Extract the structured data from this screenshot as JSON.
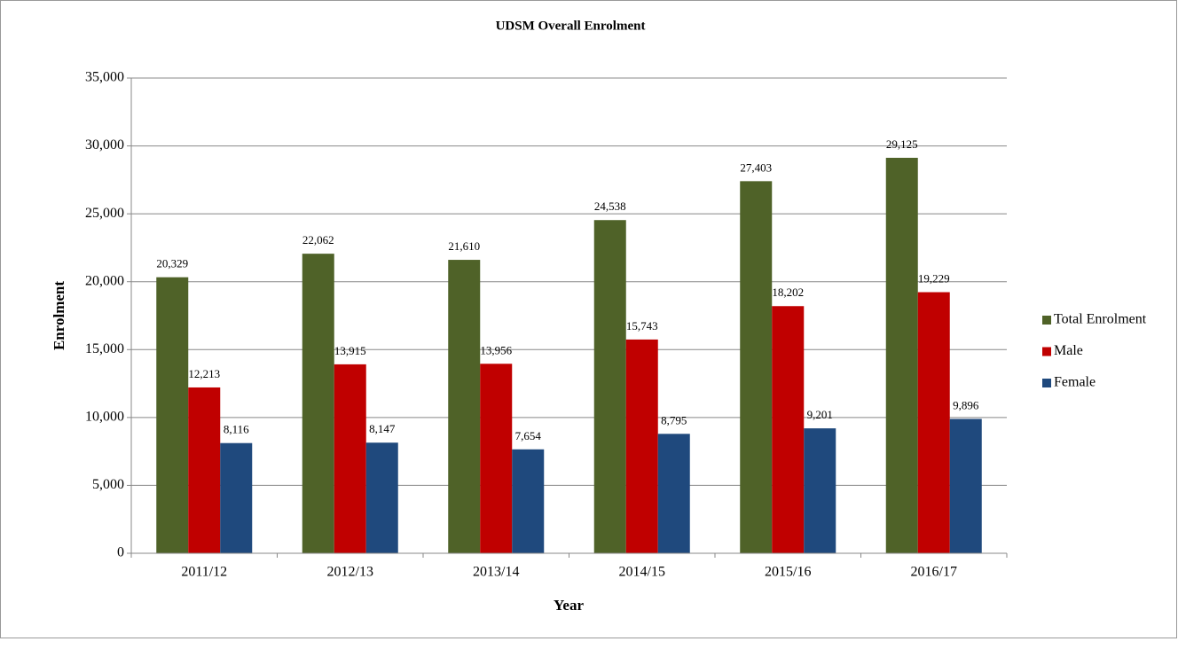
{
  "chart_data": {
    "type": "bar",
    "title": "UDSM Overall Enrolment",
    "x_label": "Year",
    "y_label": "Enrolment",
    "categories": [
      "2011/12",
      "2012/13",
      "2013/14",
      "2014/15",
      "2015/16",
      "2016/17"
    ],
    "series": [
      {
        "name": "Total Enrolment",
        "color": "#4f6228",
        "values": [
          20329,
          22062,
          21610,
          24538,
          27403,
          29125
        ],
        "value_labels": [
          "20,329",
          "22,062",
          "21,610",
          "24,538",
          "27,403",
          "29,125"
        ]
      },
      {
        "name": "Male",
        "color": "#c00000",
        "values": [
          12213,
          13915,
          13956,
          15743,
          18202,
          19229
        ],
        "value_labels": [
          "12,213",
          "13,915",
          "13,956",
          "15,743",
          "18,202",
          "19,229"
        ]
      },
      {
        "name": "Female",
        "color": "#1f497d",
        "values": [
          8116,
          8147,
          7654,
          8795,
          9201,
          9896
        ],
        "value_labels": [
          "8,116",
          "8,147",
          "7,654",
          "8,795",
          "9,201",
          "9,896"
        ]
      }
    ],
    "ylim": [
      0,
      35000
    ],
    "yticks": [
      0,
      {
        "value": 5000,
        "label": "5,000"
      },
      {
        "value": 10000,
        "label": "10,000"
      },
      {
        "value": 15000,
        "label": "15,000"
      },
      {
        "value": 20000,
        "label": "20,000"
      },
      {
        "value": 25000,
        "label": "25,000"
      },
      {
        "value": 30000,
        "label": "30,000"
      },
      {
        "value": 35000,
        "label": "35,000"
      }
    ],
    "grid": true,
    "legend": "right"
  }
}
